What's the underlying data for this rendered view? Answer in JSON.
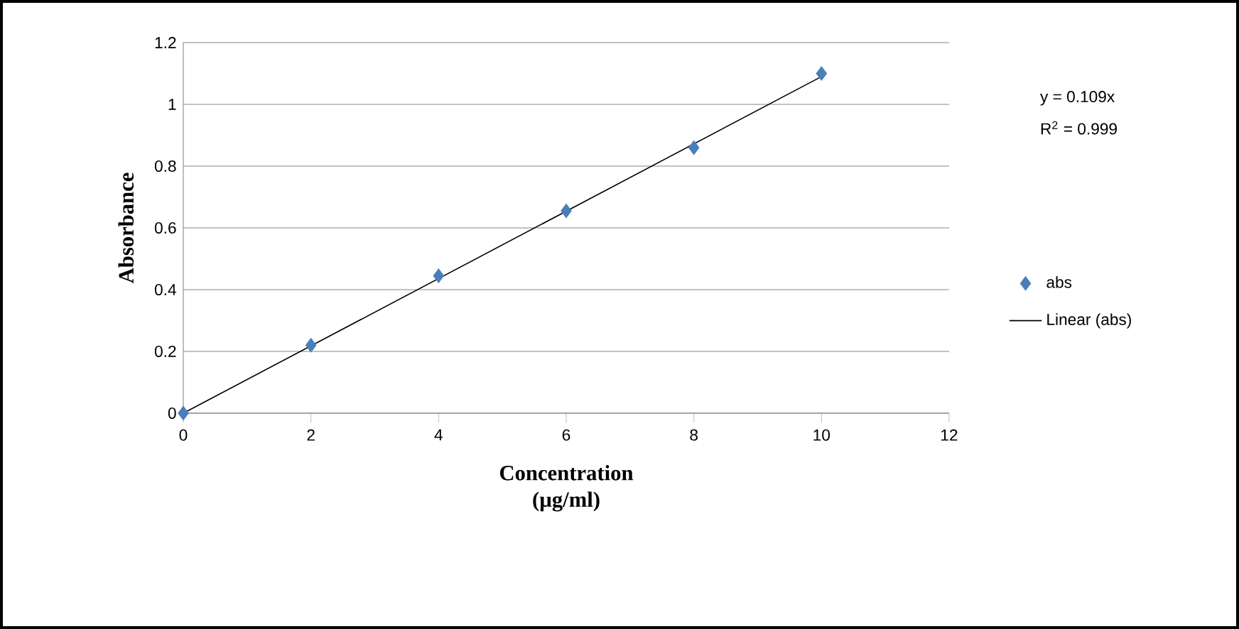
{
  "chart_data": {
    "type": "scatter",
    "xlabel": "Concentration (µg/ml)",
    "ylabel": "Absorbance",
    "x": [
      0,
      2,
      4,
      6,
      8,
      10
    ],
    "series": [
      {
        "name": "abs",
        "marker": "diamond",
        "color": "#4a7ebb",
        "values": [
          0,
          0.22,
          0.445,
          0.655,
          0.86,
          1.1
        ]
      },
      {
        "name": "Linear (abs)",
        "type": "line",
        "color": "#000000",
        "x": [
          0,
          10
        ],
        "values": [
          0,
          1.09
        ]
      }
    ],
    "xlim": [
      0,
      12
    ],
    "ylim": [
      0,
      1.2
    ],
    "xticks": [
      0,
      2,
      4,
      6,
      8,
      10,
      12
    ],
    "yticks": [
      0,
      0.2,
      0.4,
      0.6,
      0.8,
      1,
      1.2
    ],
    "grid": "y",
    "legend": "right",
    "annotations": [
      "y = 0.109x",
      "R$^{2}$ = 0.999"
    ]
  }
}
